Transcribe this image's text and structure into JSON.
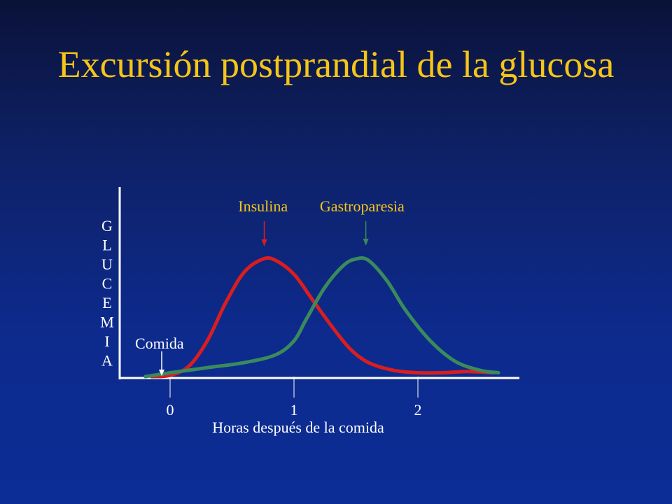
{
  "slide": {
    "title": "Excursión postprandial de la glucosa"
  },
  "colors": {
    "title": "#f5c518",
    "insulina": "#d91e1e",
    "gastroparesia": "#3a8a5c",
    "axis": "#ffffff",
    "text": "#ffffff"
  },
  "chart_data": {
    "type": "line",
    "ylabel": "GLUCEMIA",
    "ylabel_letters": [
      "G",
      "L",
      "U",
      "C",
      "E",
      "M",
      "I",
      "A"
    ],
    "xlabel": "Horas después de la comida",
    "x_ticks": [
      "0",
      "1",
      "2"
    ],
    "xlim": [
      -0.4,
      2.7
    ],
    "ylim": [
      0,
      100
    ],
    "grid": false,
    "series": [
      {
        "name": "Insulina",
        "color": "#d91e1e",
        "x": [
          -0.15,
          0,
          0.15,
          0.3,
          0.45,
          0.6,
          0.75,
          0.85,
          1.0,
          1.15,
          1.3,
          1.45,
          1.6,
          1.8,
          2.0,
          2.2,
          2.4,
          2.6
        ],
        "y": [
          0,
          1,
          8,
          28,
          58,
          82,
          92,
          91,
          80,
          60,
          40,
          22,
          11,
          5,
          3,
          3,
          4,
          3
        ]
      },
      {
        "name": "Gastroparesia",
        "color": "#3a8a5c",
        "x": [
          -0.2,
          0,
          0.3,
          0.6,
          0.85,
          1.0,
          1.1,
          1.25,
          1.4,
          1.5,
          1.6,
          1.75,
          1.9,
          2.1,
          2.3,
          2.5,
          2.65
        ],
        "y": [
          0,
          3,
          7,
          11,
          17,
          28,
          45,
          70,
          87,
          92,
          91,
          75,
          52,
          28,
          12,
          5,
          3
        ]
      }
    ],
    "annotations": [
      {
        "text": "Insulina",
        "x": 0.75,
        "color": "#f5c518",
        "arrow_color": "#d91e1e"
      },
      {
        "text": "Gastroparesia",
        "x": 1.55,
        "color": "#f5c518",
        "arrow_color": "#3a8a5c"
      },
      {
        "text": "Comida",
        "x": -0.05,
        "color": "#ffffff",
        "arrow_color": "#ffffff"
      }
    ]
  }
}
